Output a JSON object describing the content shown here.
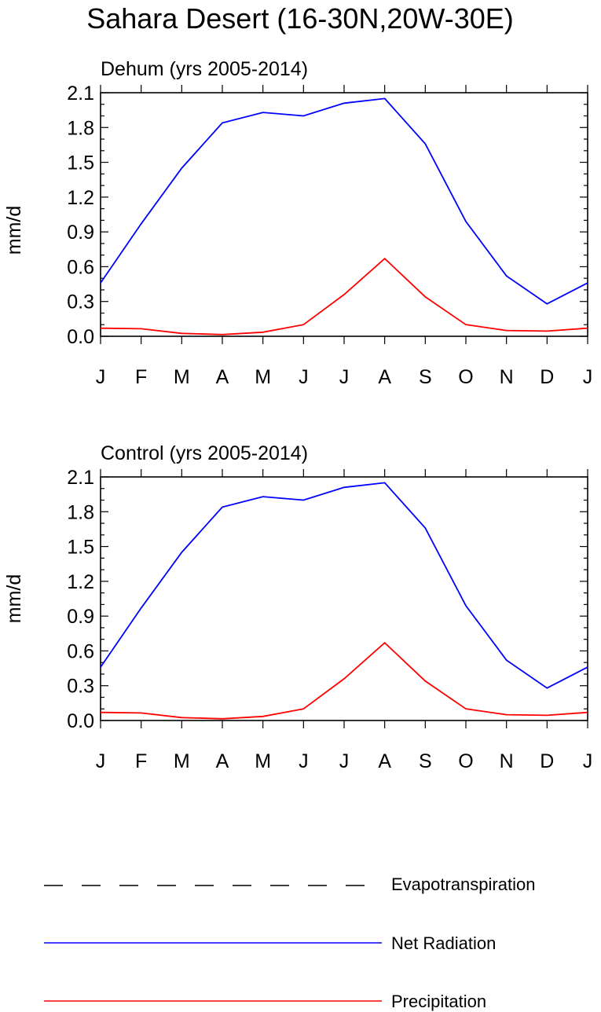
{
  "title": "Sahara Desert (16-30N,20W-30E)",
  "chart_data": [
    {
      "type": "line",
      "title": "Dehum (yrs 2005-2014)",
      "xlabel": "",
      "ylabel": "mm/d",
      "categories": [
        "J",
        "F",
        "M",
        "A",
        "M",
        "J",
        "J",
        "A",
        "S",
        "O",
        "N",
        "D",
        "J"
      ],
      "ylim": [
        0,
        2.1
      ],
      "yticks": [
        "0.0",
        "0.3",
        "0.6",
        "0.9",
        "1.2",
        "1.5",
        "1.8",
        "2.1"
      ],
      "series": [
        {
          "name": "Net Radiation",
          "color": "#0000ff",
          "values": [
            0.46,
            0.97,
            1.45,
            1.84,
            1.93,
            1.9,
            2.01,
            2.05,
            1.66,
            0.99,
            0.52,
            0.28,
            0.46
          ]
        },
        {
          "name": "Precipitation",
          "color": "#ff0000",
          "values": [
            0.07,
            0.065,
            0.025,
            0.015,
            0.035,
            0.1,
            0.36,
            0.67,
            0.34,
            0.1,
            0.05,
            0.045,
            0.07
          ]
        }
      ]
    },
    {
      "type": "line",
      "title": "Control (yrs 2005-2014)",
      "xlabel": "",
      "ylabel": "mm/d",
      "categories": [
        "J",
        "F",
        "M",
        "A",
        "M",
        "J",
        "J",
        "A",
        "S",
        "O",
        "N",
        "D",
        "J"
      ],
      "ylim": [
        0,
        2.1
      ],
      "yticks": [
        "0.0",
        "0.3",
        "0.6",
        "0.9",
        "1.2",
        "1.5",
        "1.8",
        "2.1"
      ],
      "series": [
        {
          "name": "Net Radiation",
          "color": "#0000ff",
          "values": [
            0.46,
            0.97,
            1.45,
            1.84,
            1.93,
            1.9,
            2.01,
            2.05,
            1.66,
            0.99,
            0.52,
            0.28,
            0.46
          ]
        },
        {
          "name": "Precipitation",
          "color": "#ff0000",
          "values": [
            0.07,
            0.065,
            0.025,
            0.015,
            0.035,
            0.1,
            0.36,
            0.67,
            0.34,
            0.1,
            0.05,
            0.045,
            0.07
          ]
        }
      ]
    }
  ],
  "legend": {
    "items": [
      {
        "label": "Evapotranspiration",
        "color": "#000000",
        "style": "dashed"
      },
      {
        "label": "Net Radiation",
        "color": "#0000ff",
        "style": "solid"
      },
      {
        "label": "Precipitation",
        "color": "#ff0000",
        "style": "solid"
      }
    ]
  }
}
